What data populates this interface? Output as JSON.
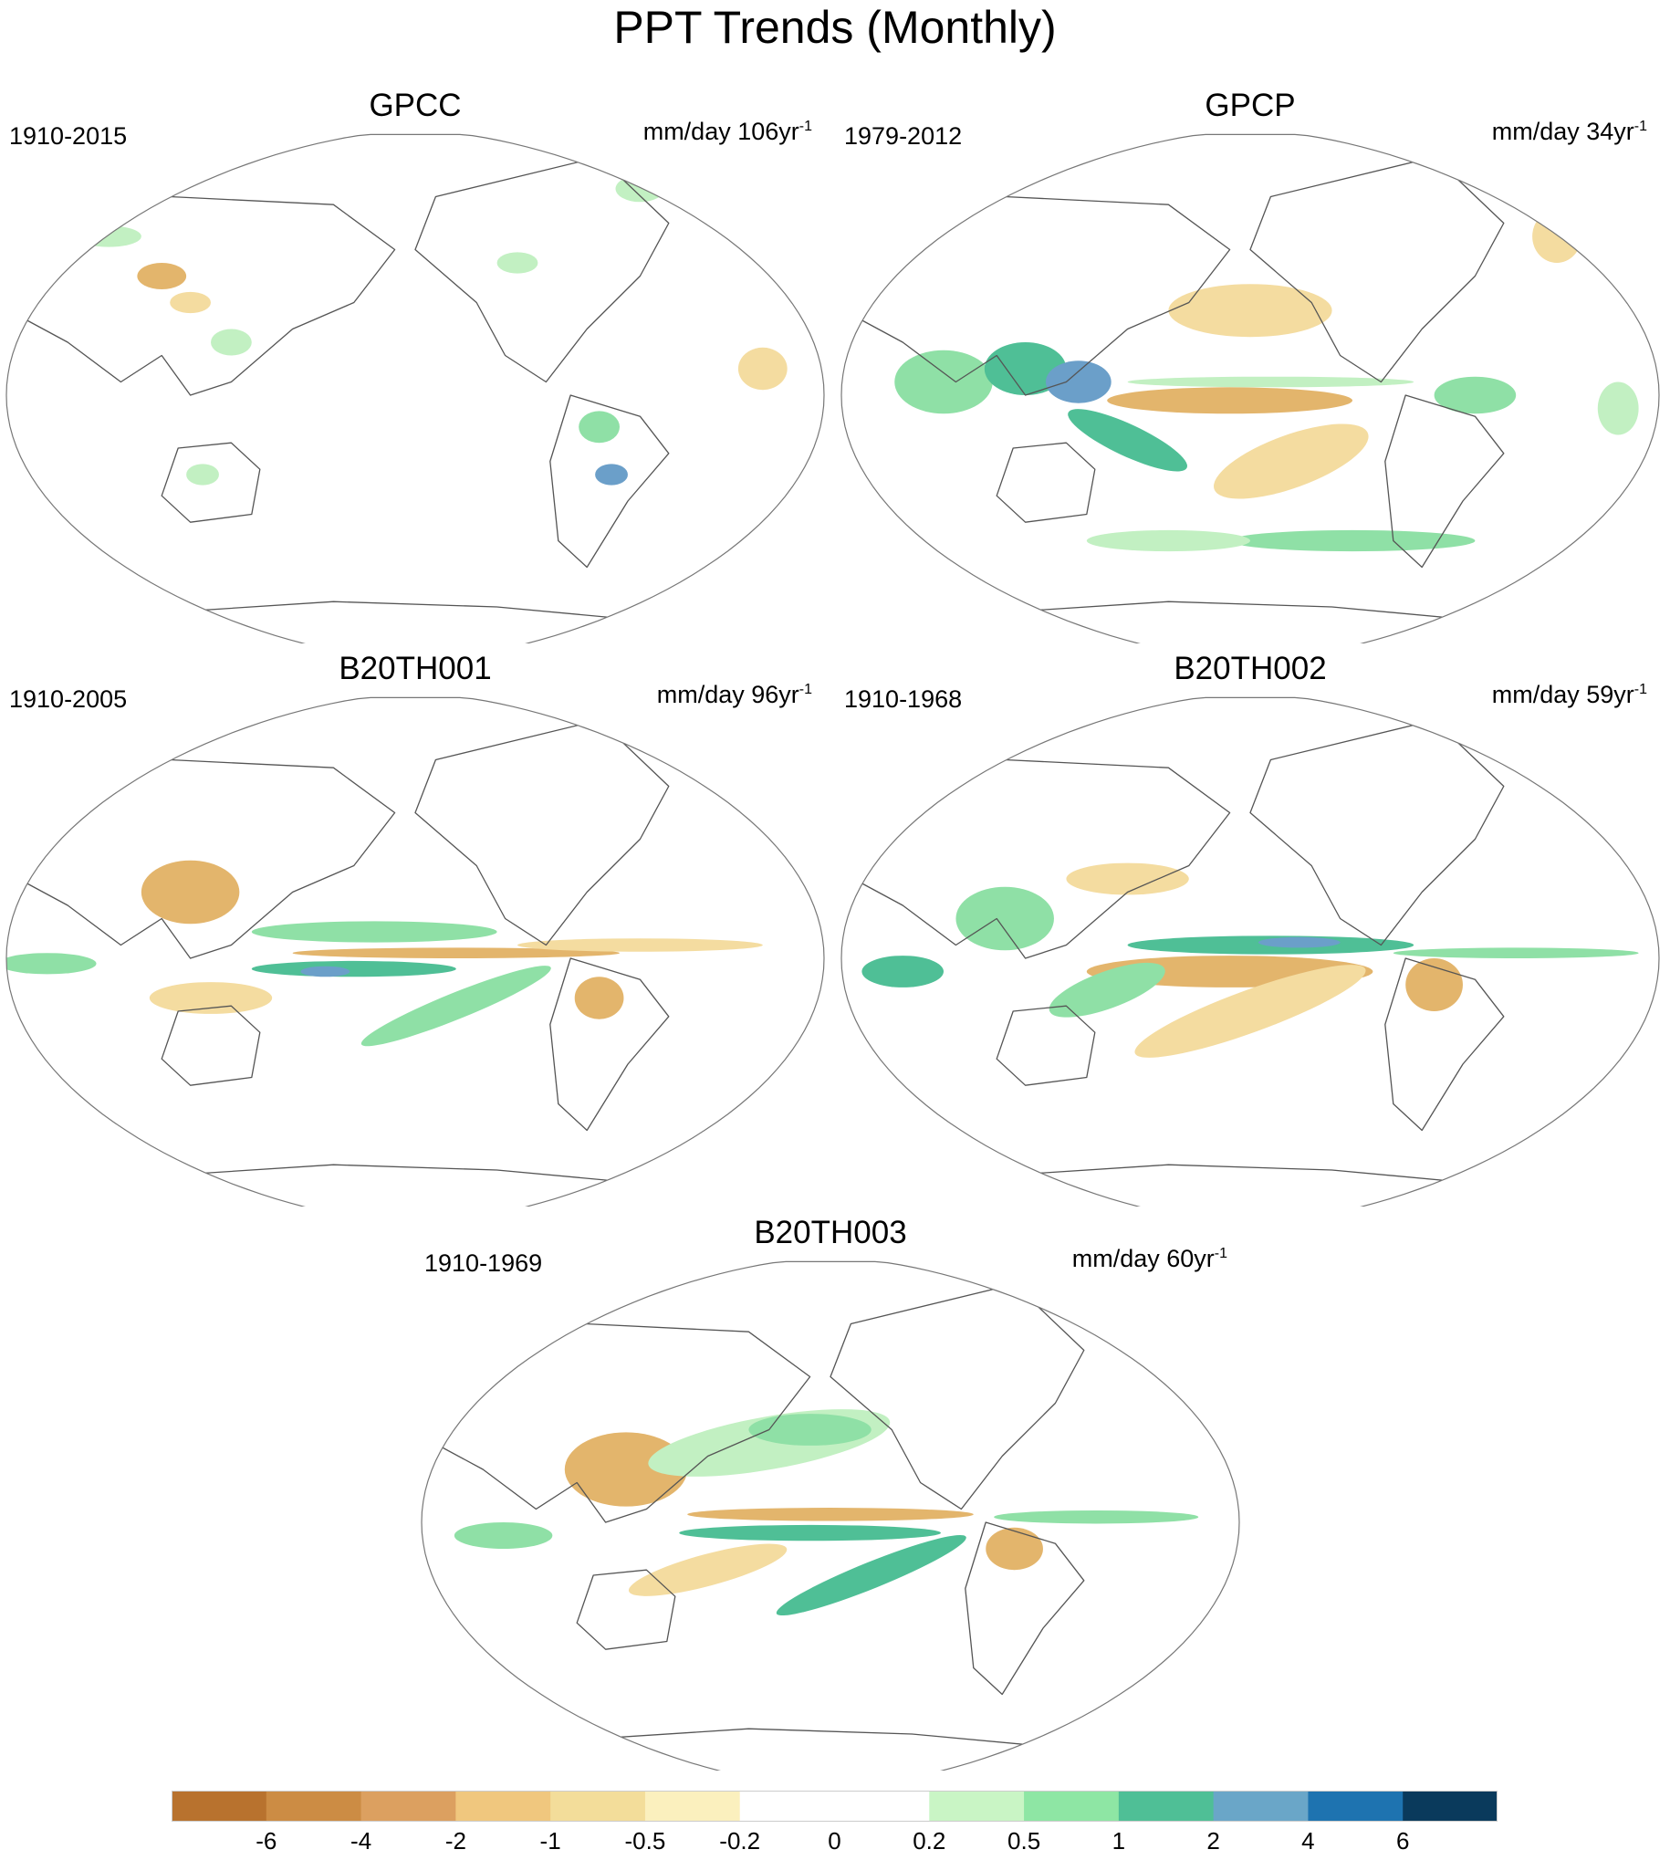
{
  "figure_title": "PPT Trends (Monthly)",
  "panels": [
    {
      "title": "GPCC",
      "period": "1910-2015",
      "units_prefix": "mm/day 106yr",
      "units_sup": "-1"
    },
    {
      "title": "GPCP",
      "period": "1979-2012",
      "units_prefix": "mm/day 34yr",
      "units_sup": "-1"
    },
    {
      "title": "B20TH001",
      "period": "1910-2005",
      "units_prefix": "mm/day 96yr",
      "units_sup": "-1"
    },
    {
      "title": "B20TH002",
      "period": "1910-1968",
      "units_prefix": "mm/day 59yr",
      "units_sup": "-1"
    },
    {
      "title": "B20TH003",
      "period": "1910-1969",
      "units_prefix": "mm/day 60yr",
      "units_sup": "-1"
    }
  ],
  "colorbar": {
    "labels": [
      "-6",
      "-4",
      "-2",
      "-1",
      "-0.5",
      "-0.2",
      "0",
      "0.2",
      "0.5",
      "1",
      "2",
      "4",
      "6"
    ],
    "colors": [
      "#b8722e",
      "#cc8c44",
      "#dca060",
      "#f0c77e",
      "#f3dd9a",
      "#fbf0be",
      "#ffffff",
      "#ffffff",
      "#c9f5c5",
      "#8ee6a4",
      "#4fbf96",
      "#6aa6c8",
      "#1e73b0",
      "#0a3a5c"
    ]
  },
  "colors": {
    "neg_strong": "#cf9550",
    "neg_mid": "#e3b56c",
    "neg_light": "#f4dca0",
    "pos_light": "#c2f0c2",
    "pos_mid": "#8fe0a6",
    "pos_strong": "#4fbf96",
    "pos_blue": "#6b9fc9",
    "coast": "#555555"
  }
}
